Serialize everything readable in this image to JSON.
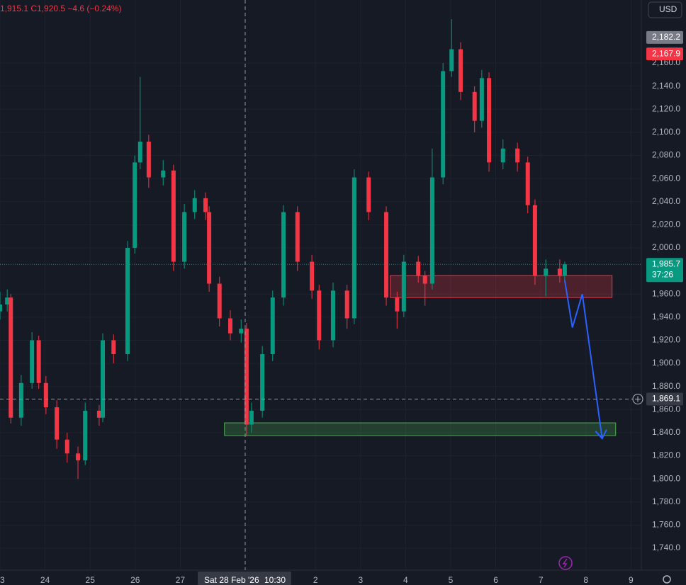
{
  "chart_data": {
    "type": "candlestick",
    "ohlc_text": "1,915.1  C1,920.5  −4.6 (−0.24%)",
    "currency": "USD",
    "up_color": "#089981",
    "down_color": "#f23645",
    "candles": [
      [
        0,
        1945,
        1962,
        1938,
        1951
      ],
      [
        0.16,
        1951,
        1964,
        1945,
        1957
      ],
      [
        0.24,
        1957,
        1960,
        1848,
        1853
      ],
      [
        0.47,
        1853,
        1890,
        1846,
        1883
      ],
      [
        0.71,
        1883,
        1927,
        1878,
        1920
      ],
      [
        0.86,
        1920,
        1924,
        1878,
        1883
      ],
      [
        1.02,
        1883,
        1889,
        1856,
        1862
      ],
      [
        1.26,
        1862,
        1868,
        1826,
        1834
      ],
      [
        1.49,
        1834,
        1840,
        1814,
        1822
      ],
      [
        1.73,
        1822,
        1828,
        1800,
        1816
      ],
      [
        1.89,
        1816,
        1866,
        1812,
        1859
      ],
      [
        2.2,
        1859,
        1864,
        1846,
        1853
      ],
      [
        2.28,
        1853,
        1926,
        1849,
        1920
      ],
      [
        2.52,
        1920,
        1925,
        1900,
        1908
      ],
      [
        2.83,
        1908,
        2006,
        1902,
        2000
      ],
      [
        2.99,
        2000,
        2080,
        1995,
        2074
      ],
      [
        3.11,
        2074,
        2148,
        2068,
        2092
      ],
      [
        3.3,
        2092,
        2098,
        2052,
        2061
      ],
      [
        3.62,
        2061,
        2076,
        2054,
        2067
      ],
      [
        3.85,
        2067,
        2072,
        1980,
        1988
      ],
      [
        4.09,
        1988,
        2038,
        1982,
        2031
      ],
      [
        4.32,
        2031,
        2050,
        2025,
        2043
      ],
      [
        4.56,
        2043,
        2048,
        2024,
        2031
      ],
      [
        4.64,
        2031,
        2036,
        1962,
        1969
      ],
      [
        4.87,
        1969,
        1975,
        1932,
        1939
      ],
      [
        5.11,
        1939,
        1946,
        1920,
        1926
      ],
      [
        5.35,
        1926,
        1938,
        1918,
        1930
      ],
      [
        5.47,
        1930,
        1935,
        1837,
        1847
      ],
      [
        5.58,
        1847,
        1866,
        1840,
        1859
      ],
      [
        5.82,
        1859,
        1915,
        1853,
        1908
      ],
      [
        6.05,
        1908,
        1963,
        1902,
        1957
      ],
      [
        6.29,
        1957,
        2037,
        1950,
        2031
      ],
      [
        6.6,
        2031,
        2036,
        1980,
        1988
      ],
      [
        6.92,
        1988,
        1994,
        1956,
        1963
      ],
      [
        7.08,
        1963,
        1968,
        1912,
        1920
      ],
      [
        7.39,
        1920,
        1970,
        1914,
        1963
      ],
      [
        7.7,
        1963,
        1968,
        1930,
        1939
      ],
      [
        7.86,
        1939,
        2068,
        1934,
        2061
      ],
      [
        8.18,
        2061,
        2066,
        2024,
        2031
      ],
      [
        8.57,
        2031,
        2036,
        1950,
        1957
      ],
      [
        8.81,
        1957,
        1962,
        1930,
        1945
      ],
      [
        8.96,
        1945,
        1994,
        1940,
        1988
      ],
      [
        9.28,
        1988,
        1993,
        1970,
        1976
      ],
      [
        9.43,
        1976,
        1980,
        1950,
        1969
      ],
      [
        9.59,
        1969,
        2086,
        1964,
        2061
      ],
      [
        9.83,
        2061,
        2160,
        2055,
        2153
      ],
      [
        10.02,
        2153,
        2198,
        2148,
        2172
      ],
      [
        10.22,
        2172,
        2178,
        2128,
        2135
      ],
      [
        10.53,
        2135,
        2140,
        2100,
        2110
      ],
      [
        10.69,
        2110,
        2154,
        2104,
        2147
      ],
      [
        10.85,
        2147,
        2152,
        2066,
        2074
      ],
      [
        11.16,
        2074,
        2094,
        2068,
        2086
      ],
      [
        11.48,
        2086,
        2091,
        2066,
        2074
      ],
      [
        11.71,
        2074,
        2079,
        2030,
        2037
      ],
      [
        11.87,
        2037,
        2042,
        1968,
        1976
      ],
      [
        12.11,
        1976,
        1990,
        1958,
        1982
      ],
      [
        12.42,
        1982,
        1990,
        1970,
        1976
      ],
      [
        12.53,
        1976,
        1988,
        1972,
        1985.7
      ]
    ],
    "xlim": [
      0,
      14.23
    ],
    "ylim": [
      1721,
      2214.6
    ],
    "xticks": [
      {
        "value": 0,
        "label": "3"
      },
      {
        "value": 1,
        "label": "24"
      },
      {
        "value": 2,
        "label": "25"
      },
      {
        "value": 3,
        "label": "26"
      },
      {
        "value": 4,
        "label": "27"
      },
      {
        "value": 7,
        "label": "2"
      },
      {
        "value": 8,
        "label": "3"
      },
      {
        "value": 9,
        "label": "4"
      },
      {
        "value": 10,
        "label": "5"
      },
      {
        "value": 11,
        "label": "6"
      },
      {
        "value": 12,
        "label": "7"
      },
      {
        "value": 13,
        "label": "8"
      },
      {
        "value": 14,
        "label": "9"
      }
    ],
    "yticks": [
      {
        "value": 2160,
        "label": "2,160.0"
      },
      {
        "value": 2140,
        "label": "2,140.0"
      },
      {
        "value": 2120,
        "label": "2,120.0"
      },
      {
        "value": 2100,
        "label": "2,100.0"
      },
      {
        "value": 2080,
        "label": "2,080.0"
      },
      {
        "value": 2060,
        "label": "2,060.0"
      },
      {
        "value": 2040,
        "label": "2,040.0"
      },
      {
        "value": 2020,
        "label": "2,020.0"
      },
      {
        "value": 2000,
        "label": "2,000.0"
      },
      {
        "value": 1960,
        "label": "1,960.0"
      },
      {
        "value": 1940,
        "label": "1,940.0"
      },
      {
        "value": 1920,
        "label": "1,920.0"
      },
      {
        "value": 1900,
        "label": "1,900.0"
      },
      {
        "value": 1880,
        "label": "1,880.0"
      },
      {
        "value": 1860,
        "label": "1,860.0"
      },
      {
        "value": 1840,
        "label": "1,840.0"
      },
      {
        "value": 1820,
        "label": "1,820.0"
      },
      {
        "value": 1800,
        "label": "1,800.0"
      },
      {
        "value": 1780,
        "label": "1,780.0"
      },
      {
        "value": 1760,
        "label": "1,760.0"
      },
      {
        "value": 1740,
        "label": "1,740.0"
      }
    ],
    "grid": true,
    "last_price": {
      "value": 1985.7,
      "label": "1,985.7",
      "countdown": "37:26",
      "color": "#089981"
    },
    "price_badges": [
      {
        "value": 2182.2,
        "label": "2,182.2",
        "color": "#787b86"
      },
      {
        "value": 2167.9,
        "label": "2,167.9",
        "color": "#f23645"
      }
    ],
    "crosshair": {
      "x": 5.44,
      "date": "Sat 28 Feb '26",
      "time": "10:30",
      "y": 1869.1,
      "y_label": "1,869.1"
    },
    "zones": [
      {
        "x": [
          8.66,
          13.58
        ],
        "y": [
          1957,
          1976
        ],
        "color": "#f23645"
      },
      {
        "x": [
          4.98,
          13.66
        ],
        "y": [
          1837.5,
          1848.5
        ],
        "color": "#4caf50"
      }
    ],
    "projection": {
      "x": [
        12.53,
        12.7,
        12.92,
        13.36
      ],
      "y": [
        1972,
        1931,
        1960,
        1835
      ],
      "color": "#2962ff"
    }
  }
}
